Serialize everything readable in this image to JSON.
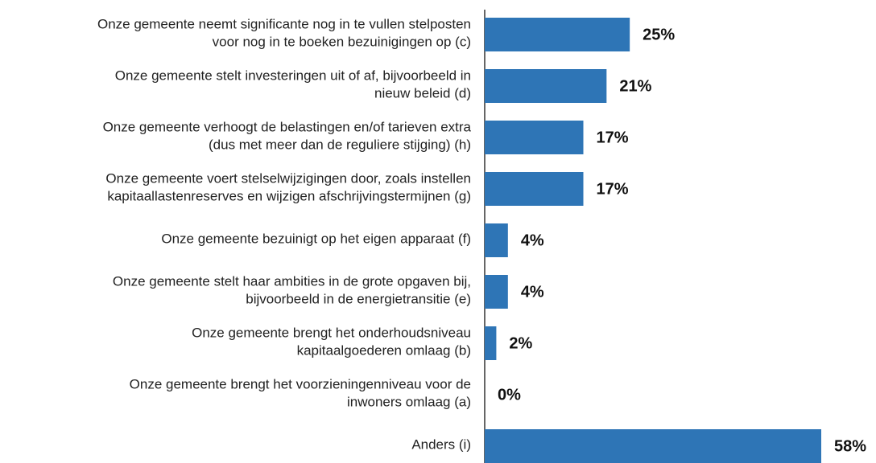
{
  "chart_data": {
    "type": "barh",
    "categories": [
      [
        "Onze gemeente neemt significante nog in te vullen stelposten",
        "voor nog in te boeken bezuinigingen op (c)"
      ],
      [
        "Onze gemeente stelt investeringen uit of af, bijvoorbeeld in",
        "nieuw beleid (d)"
      ],
      [
        "Onze gemeente verhoogt de belastingen en/of tarieven extra",
        "(dus met meer dan de reguliere stijging) (h)"
      ],
      [
        "Onze gemeente voert stelselwijzigingen door, zoals instellen",
        "kapitaallastenreserves en wijzigen afschrijvingstermijnen (g)"
      ],
      [
        "Onze gemeente bezuinigt op het eigen apparaat (f)"
      ],
      [
        "Onze gemeente stelt haar ambities in de grote opgaven bij,",
        "bijvoorbeeld in de energietransitie (e)"
      ],
      [
        "Onze gemeente brengt het onderhoudsniveau",
        "kapitaalgoederen omlaag (b)"
      ],
      [
        "Onze gemeente brengt het voorzieningenniveau voor de",
        "inwoners omlaag (a)"
      ],
      [
        "Anders (i)"
      ]
    ],
    "values": [
      25,
      21,
      17,
      17,
      4,
      4,
      2,
      0,
      58
    ],
    "value_labels": [
      "25%",
      "21%",
      "17%",
      "17%",
      "4%",
      "4%",
      "2%",
      "0%",
      "58%"
    ],
    "color": "#2e75b6"
  }
}
